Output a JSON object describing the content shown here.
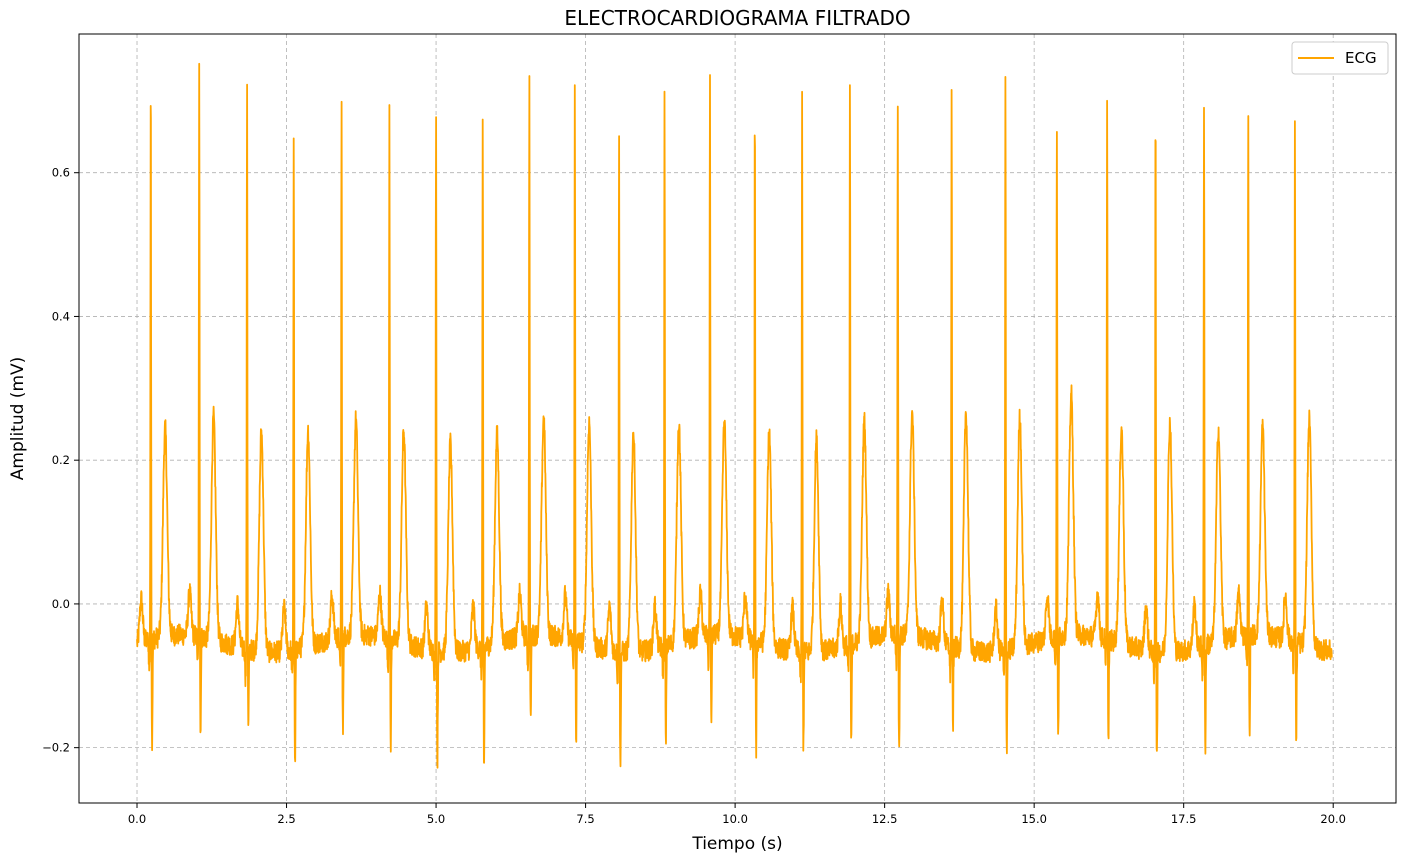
{
  "chart_data": {
    "type": "line",
    "title": "ELECTROCARDIOGRAMA FILTRADO",
    "xlabel": "Tiempo (s)",
    "ylabel": "Amplitud (mV)",
    "xlim": [
      -0.97,
      21.05
    ],
    "ylim": [
      -0.277,
      0.793
    ],
    "xticks": [
      0.0,
      2.5,
      5.0,
      7.5,
      10.0,
      12.5,
      15.0,
      17.5,
      20.0
    ],
    "xtick_labels": [
      "0.0",
      "2.5",
      "5.0",
      "7.5",
      "10.0",
      "12.5",
      "15.0",
      "17.5",
      "20.0"
    ],
    "yticks": [
      -0.2,
      0.0,
      0.2,
      0.4,
      0.6
    ],
    "ytick_labels": [
      "−0.2",
      "0.0",
      "0.2",
      "0.4",
      "0.6"
    ],
    "grid": true,
    "legend": "top-right",
    "series": [
      {
        "name": "ECG",
        "color": "#ffa500",
        "r_peaks": [
          {
            "t": 0.23,
            "r": 0.725,
            "s": -0.195,
            "tw": 0.235
          },
          {
            "t": 1.04,
            "r": 0.735,
            "s": -0.19,
            "tw": 0.255
          },
          {
            "t": 1.84,
            "r": 0.74,
            "s": -0.165,
            "tw": 0.25
          },
          {
            "t": 2.62,
            "r": 0.66,
            "s": -0.225,
            "tw": 0.245
          },
          {
            "t": 3.42,
            "r": 0.705,
            "s": -0.19,
            "tw": 0.245
          },
          {
            "t": 4.22,
            "r": 0.7,
            "s": -0.205,
            "tw": 0.24
          },
          {
            "t": 5.0,
            "r": 0.7,
            "s": -0.21,
            "tw": 0.235
          },
          {
            "t": 5.78,
            "r": 0.685,
            "s": -0.23,
            "tw": 0.235
          },
          {
            "t": 6.56,
            "r": 0.72,
            "s": -0.18,
            "tw": 0.245
          },
          {
            "t": 7.32,
            "r": 0.71,
            "s": -0.19,
            "tw": 0.255
          },
          {
            "t": 8.06,
            "r": 0.675,
            "s": -0.22,
            "tw": 0.25
          },
          {
            "t": 8.82,
            "r": 0.705,
            "s": -0.195,
            "tw": 0.25
          },
          {
            "t": 9.58,
            "r": 0.72,
            "s": -0.18,
            "tw": 0.24
          },
          {
            "t": 10.33,
            "r": 0.695,
            "s": -0.21,
            "tw": 0.24
          },
          {
            "t": 11.12,
            "r": 0.715,
            "s": -0.185,
            "tw": 0.24
          },
          {
            "t": 11.92,
            "r": 0.715,
            "s": -0.2,
            "tw": 0.25
          },
          {
            "t": 12.72,
            "r": 0.69,
            "s": -0.22,
            "tw": 0.255
          },
          {
            "t": 13.62,
            "r": 0.73,
            "s": -0.165,
            "tw": 0.275
          },
          {
            "t": 14.52,
            "r": 0.745,
            "s": -0.19,
            "tw": 0.265
          },
          {
            "t": 15.38,
            "r": 0.66,
            "s": -0.2,
            "tw": 0.28
          },
          {
            "t": 16.22,
            "r": 0.705,
            "s": -0.2,
            "tw": 0.245
          },
          {
            "t": 17.03,
            "r": 0.71,
            "s": -0.205,
            "tw": 0.265
          },
          {
            "t": 17.84,
            "r": 0.685,
            "s": -0.2,
            "tw": 0.24
          },
          {
            "t": 18.58,
            "r": 0.665,
            "s": -0.2,
            "tw": 0.235
          },
          {
            "t": 19.36,
            "r": 0.66,
            "s": -0.195,
            "tw": 0.26
          }
        ],
        "baseline": -0.055,
        "x_end": 19.98
      }
    ]
  }
}
